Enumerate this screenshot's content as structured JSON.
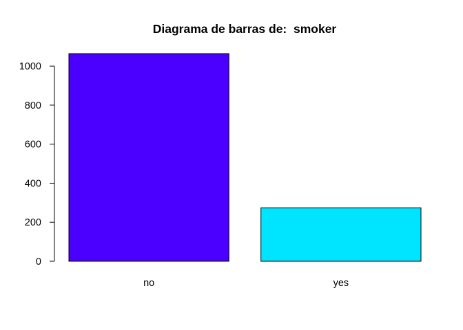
{
  "chart_data": {
    "type": "bar",
    "title": "Diagrama de barras de:  smoker",
    "xlabel": "",
    "ylabel": "",
    "categories": [
      "no",
      "yes"
    ],
    "values": [
      1064,
      274
    ],
    "colors": [
      "#4B00FF",
      "#00E5FF"
    ],
    "ylim": [
      0,
      1064
    ],
    "yticks": [
      0,
      200,
      400,
      600,
      800,
      1000
    ],
    "ytick_labels": [
      "0",
      "200",
      "400",
      "600",
      "800",
      "1000"
    ],
    "grid": false,
    "legend": "none"
  }
}
